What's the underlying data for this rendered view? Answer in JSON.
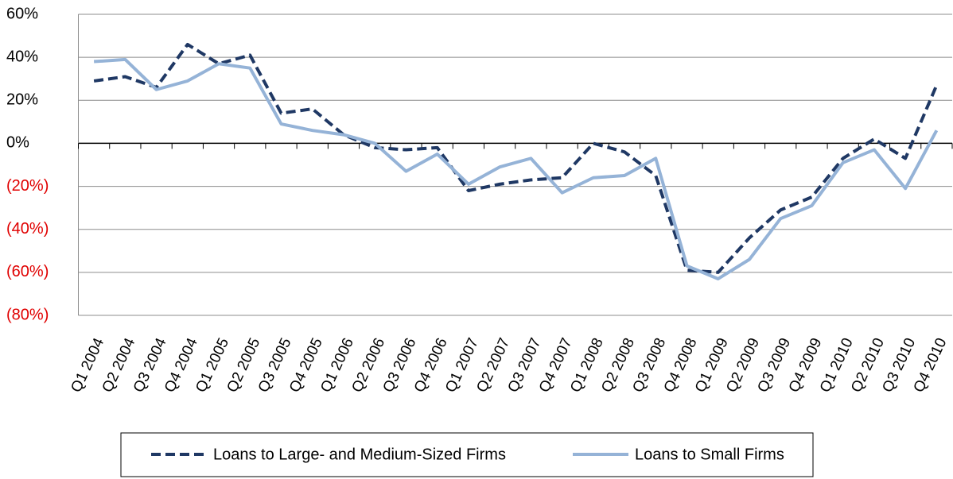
{
  "chart_data": {
    "type": "line",
    "categories": [
      "Q1 2004",
      "Q2 2004",
      "Q3 2004",
      "Q4 2004",
      "Q1 2005",
      "Q2 2005",
      "Q3 2005",
      "Q4 2005",
      "Q1 2006",
      "Q2 2006",
      "Q3 2006",
      "Q4 2006",
      "Q1 2007",
      "Q2 2007",
      "Q3 2007",
      "Q4 2007",
      "Q1 2008",
      "Q2 2008",
      "Q3 2008",
      "Q4 2008",
      "Q1 2009",
      "Q2 2009",
      "Q3 2009",
      "Q4 2009",
      "Q1 2010",
      "Q2 2010",
      "Q3 2010",
      "Q4 2010"
    ],
    "series": [
      {
        "name": "Loans to Large- and Medium-Sized Firms",
        "color": "#1f3864",
        "dash": true,
        "values": [
          29,
          31,
          26,
          46,
          37,
          41,
          14,
          16,
          4,
          -2,
          -3,
          -2,
          -22,
          -19,
          -17,
          -16,
          0,
          -4,
          -15,
          -59,
          -60,
          -44,
          -31,
          -25,
          -7,
          2,
          -7,
          27
        ]
      },
      {
        "name": "Loans to Small Firms",
        "color": "#95b3d7",
        "dash": false,
        "values": [
          38,
          39,
          25,
          29,
          37,
          35,
          9,
          6,
          4,
          0,
          -13,
          -5,
          -19,
          -11,
          -7,
          -23,
          -16,
          -15,
          -7,
          -57,
          -63,
          -54,
          -35,
          -29,
          -9,
          -3,
          -21,
          6
        ]
      }
    ],
    "ylim": [
      -80,
      60
    ],
    "yticks": [
      {
        "value": -80,
        "label": "(80%)"
      },
      {
        "value": -60,
        "label": "(60%)"
      },
      {
        "value": -40,
        "label": "(40%)"
      },
      {
        "value": -20,
        "label": "(20%)"
      },
      {
        "value": 0,
        "label": "0%"
      },
      {
        "value": 20,
        "label": "20%"
      },
      {
        "value": 40,
        "label": "40%"
      },
      {
        "value": 60,
        "label": "60%"
      }
    ],
    "grid": true,
    "legend": "bottom"
  }
}
